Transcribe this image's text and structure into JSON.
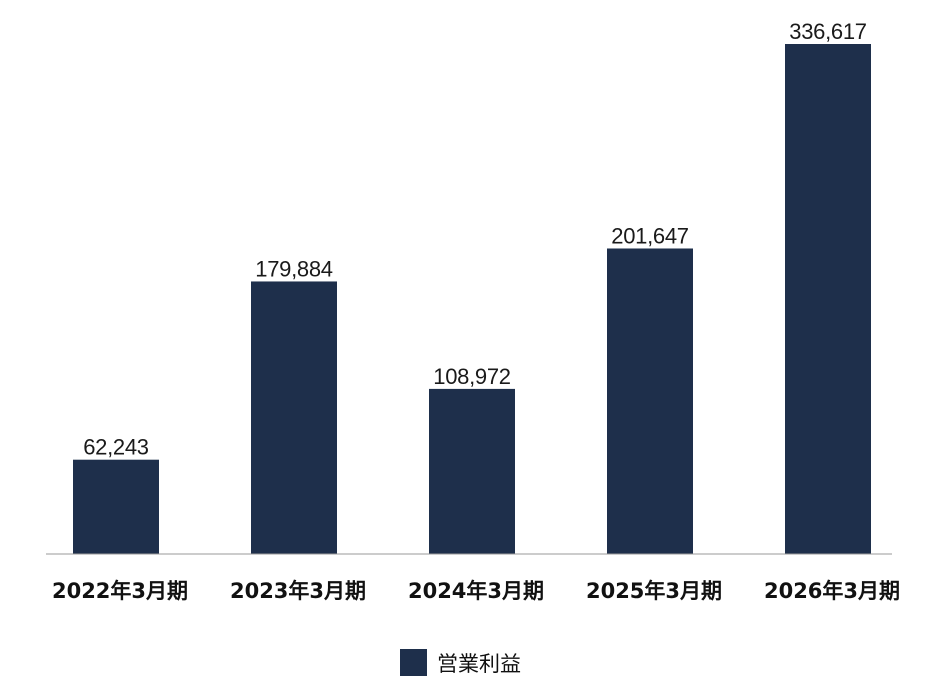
{
  "chart_data": {
    "type": "bar",
    "categories": [
      "2022年3月期",
      "2023年3月期",
      "2024年3月期",
      "2025年3月期",
      "2026年3月期"
    ],
    "series": [
      {
        "name": "営業利益",
        "values": [
          62243,
          179884,
          108972,
          201647,
          336617
        ],
        "value_labels": [
          "62,243",
          "179,884",
          "108,972",
          "201,647",
          "336,617"
        ],
        "color": "#1e2f4b"
      }
    ],
    "ylim": [
      0,
      336617
    ],
    "grid": false,
    "legend": "bottom-center",
    "axis_line_color": "#999999"
  }
}
